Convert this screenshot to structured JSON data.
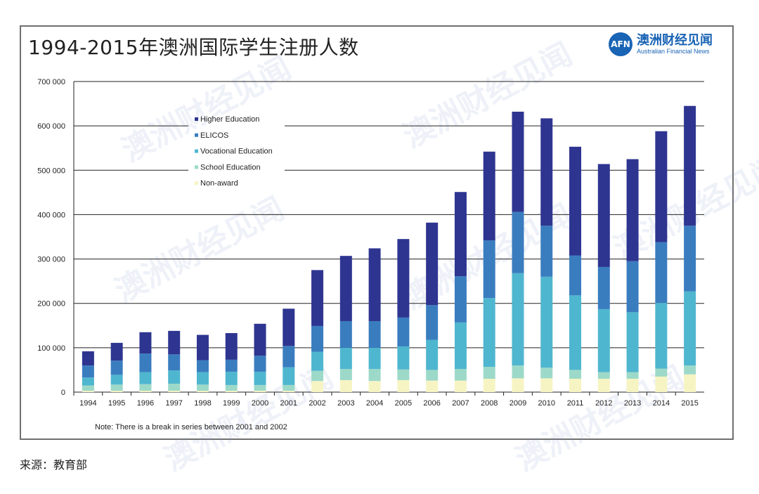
{
  "header": {
    "title": "1994-2015年澳洲国际学生注册人数",
    "brand_logo": "AFN",
    "brand_cn": "澳洲财经见闻",
    "brand_en": "Australian Financial News"
  },
  "footer": {
    "source": "来源：教育部"
  },
  "watermark": {
    "text": "澳洲财经见闻"
  },
  "colors": {
    "higher_education": "#2e3590",
    "elicos": "#3a7dbf",
    "vocational_education": "#4fb6cf",
    "school_education": "#9dd9c8",
    "non_award": "#f7f4c4"
  },
  "chart_data": {
    "type": "bar",
    "stacked": true,
    "categories": [
      "1994",
      "1995",
      "1996",
      "1997",
      "1998",
      "1999",
      "2000",
      "2001",
      "2002",
      "2003",
      "2004",
      "2005",
      "2006",
      "2007",
      "2008",
      "2009",
      "2010",
      "2011",
      "2012",
      "2013",
      "2014",
      "2015"
    ],
    "series": [
      {
        "name": "Non-award",
        "color_key": "non_award",
        "values": [
          3000,
          3000,
          3000,
          3000,
          3000,
          3000,
          3000,
          3000,
          25000,
          27000,
          25000,
          27000,
          26000,
          26000,
          30000,
          31000,
          31000,
          30000,
          30000,
          30000,
          35000,
          40000
        ]
      },
      {
        "name": "School Education",
        "color_key": "school_education",
        "values": [
          12000,
          14000,
          15000,
          16000,
          14000,
          13000,
          13000,
          13000,
          23000,
          25000,
          27000,
          24000,
          24000,
          26000,
          27000,
          29000,
          24000,
          20000,
          15000,
          15000,
          18000,
          20000
        ]
      },
      {
        "name": "Vocational Education",
        "color_key": "vocational_education",
        "values": [
          18000,
          22000,
          27000,
          30000,
          28000,
          30000,
          30000,
          40000,
          43000,
          48000,
          48000,
          52000,
          68000,
          105000,
          155000,
          208000,
          205000,
          168000,
          142000,
          135000,
          148000,
          167000
        ]
      },
      {
        "name": "ELICOS",
        "color_key": "elicos",
        "values": [
          27000,
          32000,
          42000,
          36000,
          27000,
          27000,
          36000,
          48000,
          58000,
          60000,
          60000,
          65000,
          78000,
          104000,
          130000,
          138000,
          115000,
          90000,
          95000,
          115000,
          137000,
          148000
        ]
      },
      {
        "name": "Higher Education",
        "color_key": "higher_education",
        "values": [
          32000,
          40000,
          48000,
          53000,
          57000,
          60000,
          72000,
          84000,
          126000,
          147000,
          164000,
          177000,
          186000,
          190000,
          200000,
          226000,
          242000,
          245000,
          232000,
          230000,
          250000,
          270000
        ]
      }
    ],
    "legend_order": [
      "Higher Education",
      "ELICOS",
      "Vocational Education",
      "School Education",
      "Non-award"
    ],
    "ylim": [
      0,
      700000
    ],
    "yticks": [
      0,
      100000,
      200000,
      300000,
      400000,
      500000,
      600000,
      700000
    ],
    "ytick_labels": [
      "0",
      "100 000",
      "200 000",
      "300 000",
      "400 000",
      "500 000",
      "600 000",
      "700 000"
    ],
    "xlabel": "",
    "ylabel": "",
    "grid": true,
    "legend_position": "top-left",
    "note": "Note: There is a break in series between 2001 and 2002"
  }
}
